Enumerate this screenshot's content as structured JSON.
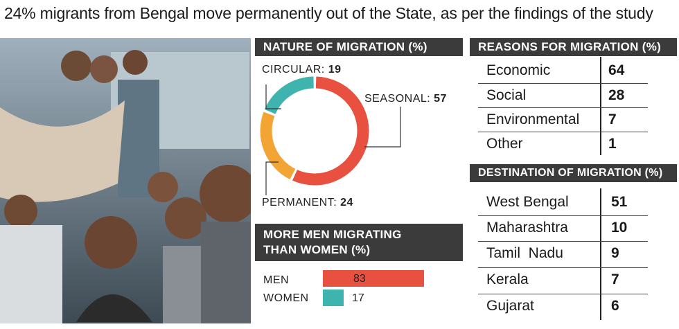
{
  "headline": "24% migrants from Bengal move permanently out of the State, as per the findings of the study",
  "nature": {
    "title": "NATURE OF MIGRATION (%)",
    "labels": [
      {
        "name": "CIRCULAR",
        "value": "19"
      },
      {
        "name": "SEASONAL",
        "value": "57"
      },
      {
        "name": "PERMANENT",
        "value": "24"
      }
    ]
  },
  "reasons": {
    "title": "REASONS FOR MIGRATION (%)",
    "rows": [
      {
        "label": "Economic",
        "value": "64"
      },
      {
        "label": "Social",
        "value": "28"
      },
      {
        "label": "Environmental",
        "value": "7"
      },
      {
        "label": "Other",
        "value": "1"
      }
    ]
  },
  "destination": {
    "title": "DESTINATION OF MIGRATION (%)",
    "rows": [
      {
        "label": "West Bengal",
        "value": "51"
      },
      {
        "label": "Maharashtra",
        "value": "10"
      },
      {
        "label": "Tamil  Nadu",
        "value": "9"
      },
      {
        "label": "Kerala",
        "value": "7"
      },
      {
        "label": "Gujarat",
        "value": "6"
      }
    ]
  },
  "gender": {
    "title_line1": "MORE MEN MIGRATING",
    "title_line2": "THAN WOMEN (%)",
    "rows": [
      {
        "label": "MEN",
        "value": "83"
      },
      {
        "label": "WOMEN",
        "value": "17"
      }
    ]
  },
  "colors": {
    "seasonal": "#e8503f",
    "circular": "#3fb3ad",
    "permanent": "#f2a435",
    "men": "#e8503f",
    "women": "#3fb3ad",
    "header_bg": "#3b3b3b"
  },
  "chart_data": [
    {
      "type": "pie",
      "title": "NATURE OF MIGRATION (%)",
      "categories": [
        "SEASONAL",
        "CIRCULAR",
        "PERMANENT"
      ],
      "values": [
        57,
        19,
        24
      ]
    },
    {
      "type": "table",
      "title": "REASONS FOR MIGRATION (%)",
      "categories": [
        "Economic",
        "Social",
        "Environmental",
        "Other"
      ],
      "values": [
        64,
        28,
        7,
        1
      ]
    },
    {
      "type": "table",
      "title": "DESTINATION OF MIGRATION (%)",
      "categories": [
        "West Bengal",
        "Maharashtra",
        "Tamil  Nadu",
        "Kerala",
        "Gujarat"
      ],
      "values": [
        51,
        10,
        9,
        7,
        6
      ]
    },
    {
      "type": "bar",
      "title": "MORE MEN MIGRATING THAN WOMEN (%)",
      "categories": [
        "MEN",
        "WOMEN"
      ],
      "values": [
        83,
        17
      ]
    }
  ]
}
